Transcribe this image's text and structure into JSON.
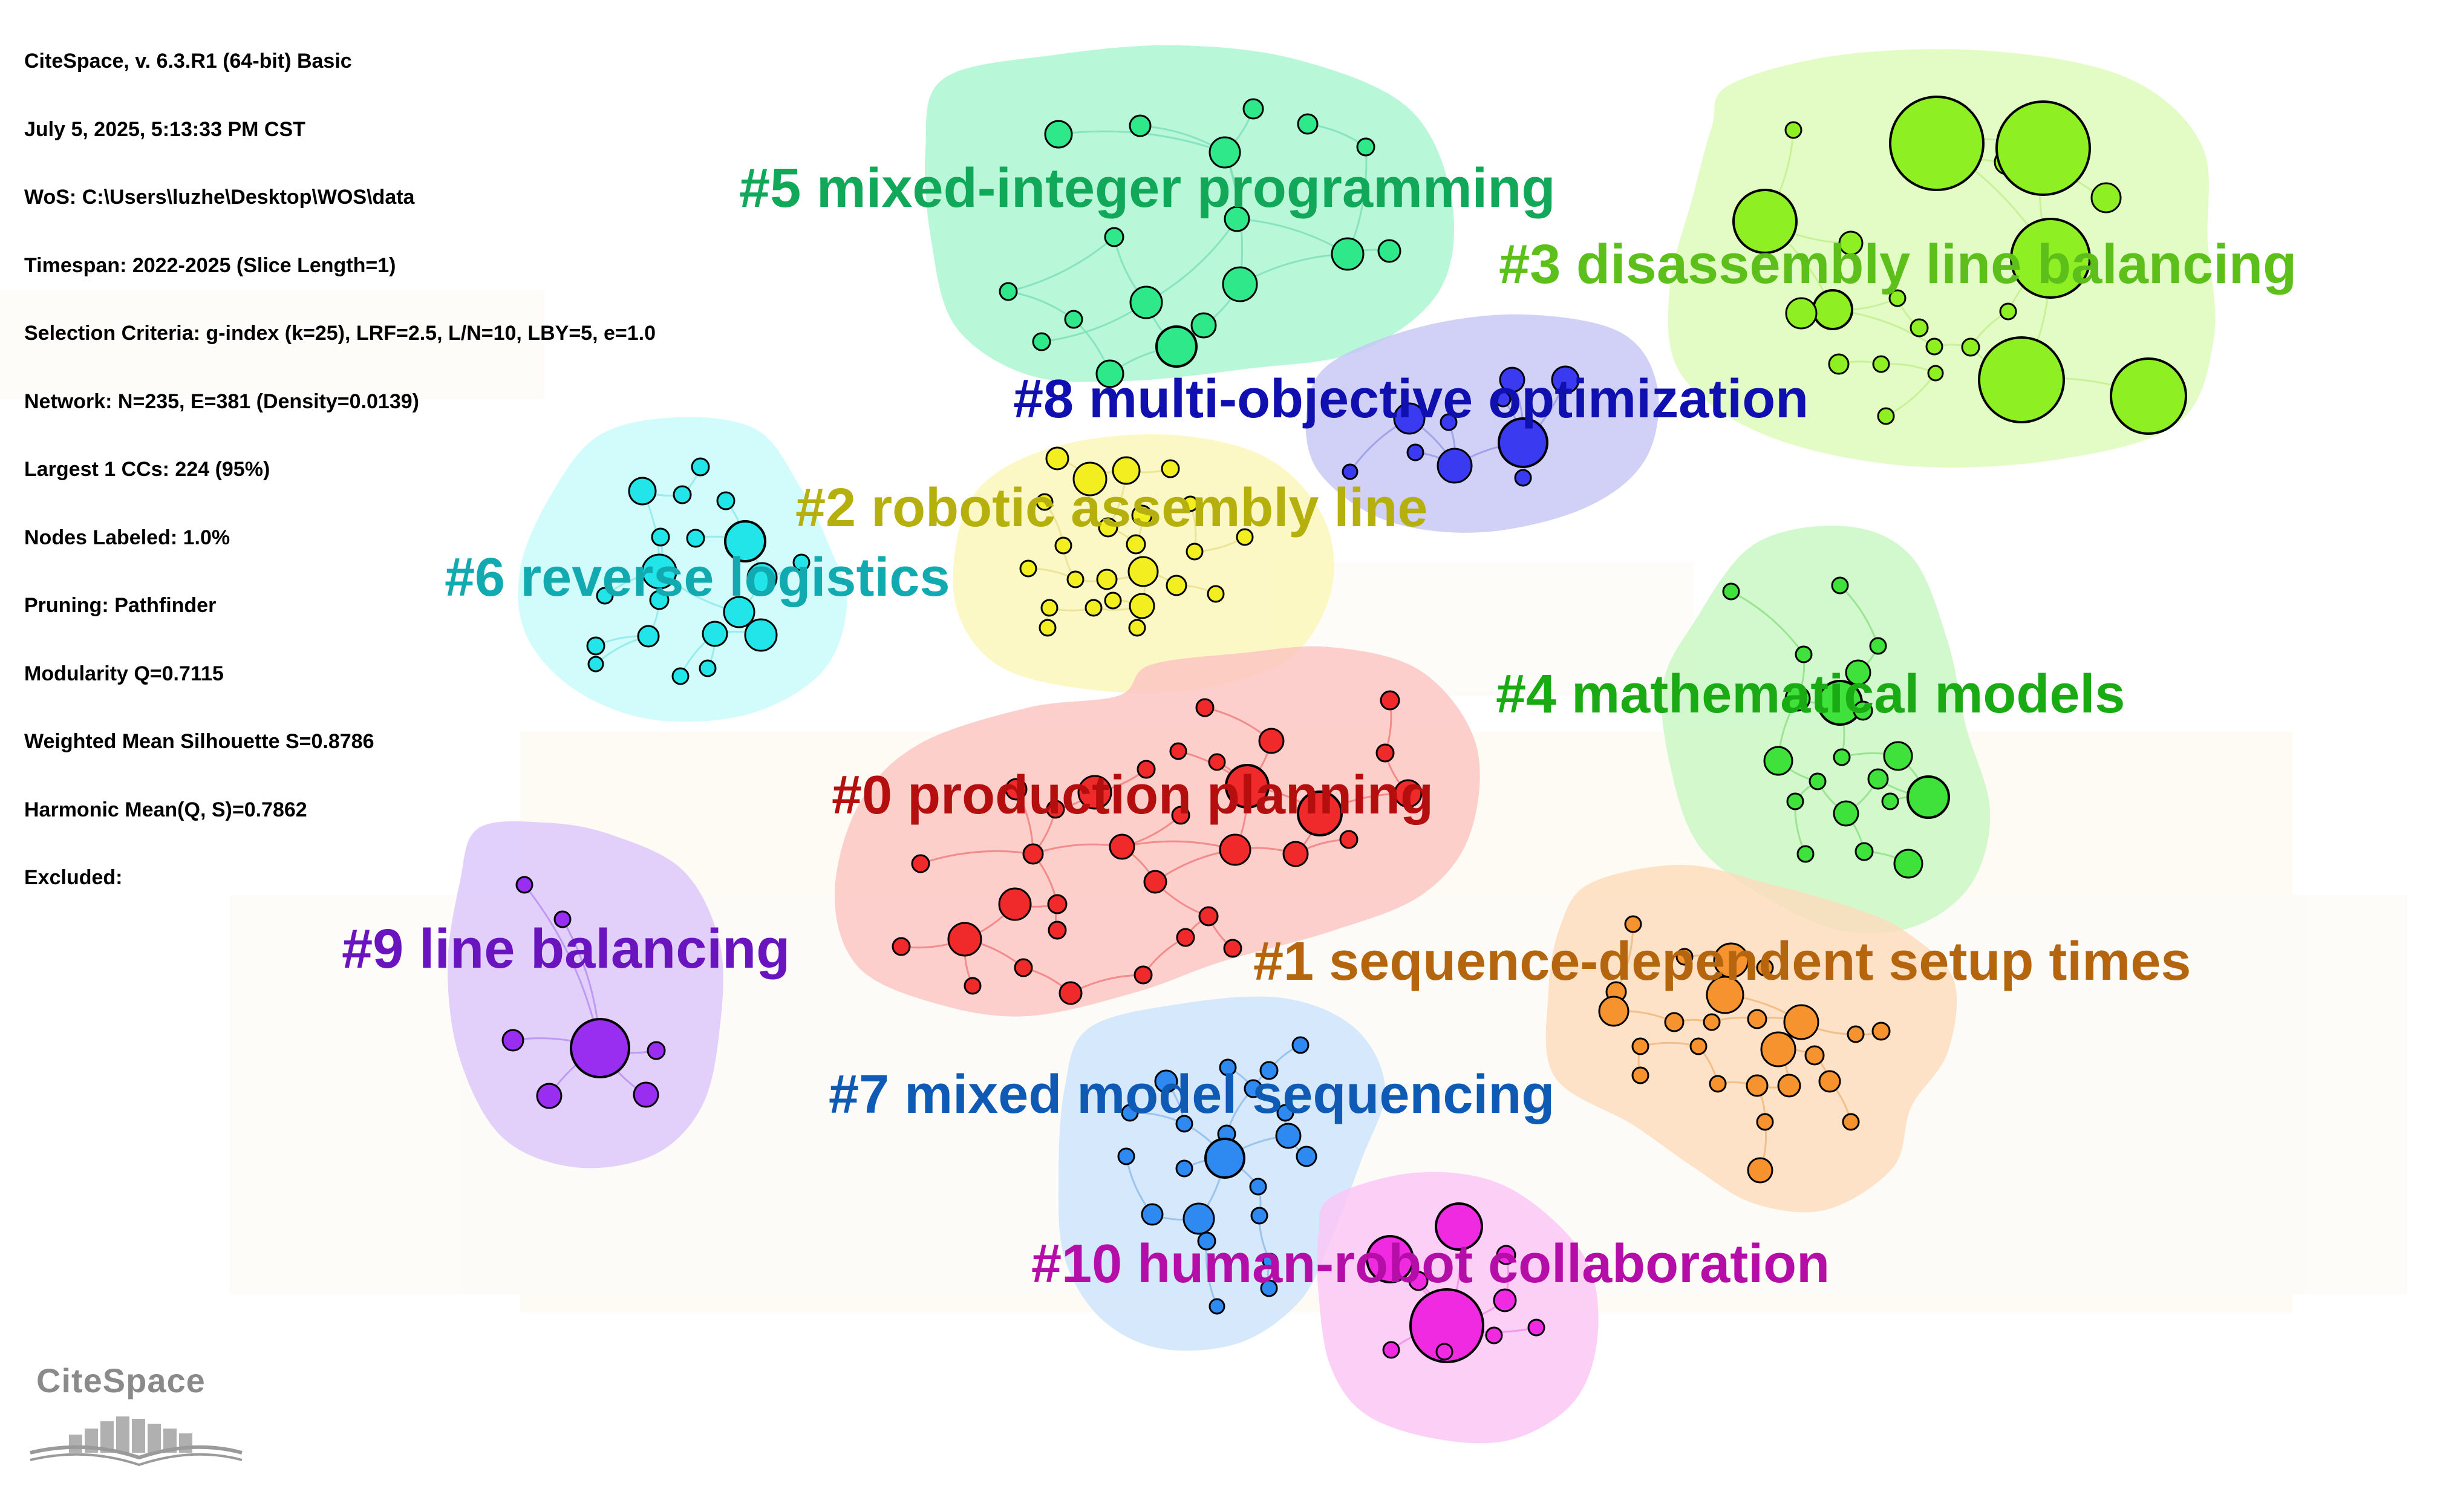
{
  "info_lines": [
    "CiteSpace, v. 6.3.R1 (64-bit) Basic",
    "July 5, 2025, 5:13:33 PM CST",
    "WoS: C:\\Users\\luzhe\\Desktop\\WOS\\data",
    "Timespan: 2022-2025 (Slice Length=1)",
    "Selection Criteria: g-index (k=25), LRF=2.5, L/N=10, LBY=5, e=1.0",
    "Network: N=235, E=381 (Density=0.0139)",
    "Largest 1 CCs: 224 (95%)",
    "Nodes Labeled: 1.0%",
    "Pruning: Pathfinder",
    "Modularity Q=0.7115",
    "Weighted Mean Silhouette S=0.8786",
    "Harmonic Mean(Q, S)=0.7862",
    "Excluded:"
  ],
  "logo_text": "CiteSpace",
  "clusters": [
    {
      "id": "c5",
      "label": "#5 mixed-integer programming",
      "fill": "#a8f5d0",
      "node": "#2ee88a",
      "text": "#11a85a",
      "edge": "#7fe0b8"
    },
    {
      "id": "c3",
      "label": "#3 disassembly line balancing",
      "fill": "#ddfbb8",
      "node": "#8ef022",
      "text": "#5cbf1a",
      "edge": "#c4ef90"
    },
    {
      "id": "c8",
      "label": "#8 multi-objective optimization",
      "fill": "#c7c7f7",
      "node": "#3a3af0",
      "text": "#1010b0",
      "edge": "#9a9ae8"
    },
    {
      "id": "c2",
      "label": "#2 robotic assembly line",
      "fill": "#fbf7b8",
      "node": "#f2ee20",
      "text": "#b5b00e",
      "edge": "#e8e090"
    },
    {
      "id": "c6",
      "label": "#6 reverse logistics",
      "fill": "#c8fbfb",
      "node": "#22e5ea",
      "text": "#10aab0",
      "edge": "#90e8e8"
    },
    {
      "id": "c4",
      "label": "#4 mathematical models",
      "fill": "#c8f6c2",
      "node": "#3fe23a",
      "text": "#1aaa14",
      "edge": "#90e08a"
    },
    {
      "id": "c0",
      "label": "#0 production planning",
      "fill": "#fbc4c2",
      "node": "#f02a2a",
      "text": "#b50e0e",
      "edge": "#f08080"
    },
    {
      "id": "c9",
      "label": "#9 line balancing",
      "fill": "#dcc6fb",
      "node": "#9a2ef0",
      "text": "#6a14c0",
      "edge": "#b890f0"
    },
    {
      "id": "c1",
      "label": "#1 sequence-dependent setup times",
      "fill": "#fcdcbc",
      "node": "#f7932e",
      "text": "#b5650e",
      "edge": "#f0b880"
    },
    {
      "id": "c7",
      "label": "#7 mixed model sequencing",
      "fill": "#cde3fb",
      "node": "#2e8af0",
      "text": "#0e5ab5",
      "edge": "#90bce8"
    },
    {
      "id": "c10",
      "label": "#10 human-robot collaboration",
      "fill": "#fbc4f5",
      "node": "#f02ae0",
      "text": "#b50ea8",
      "edge": "#f090e8"
    }
  ]
}
